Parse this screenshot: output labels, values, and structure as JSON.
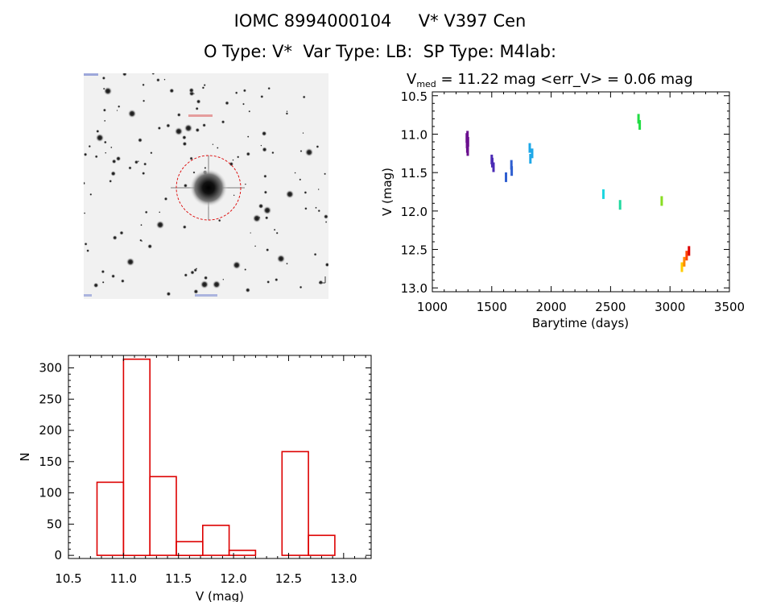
{
  "header": {
    "line1": "IOMC 8994000104     V* V397 Cen",
    "line2": "O Type: V*  Var Type: LB:  SP Type: M4lab:"
  },
  "stats": {
    "v_symbol": "V",
    "v_subscript": "med",
    "text": " = 11.22 mag <err_V> = 0.06 mag"
  },
  "colors": {
    "histogram_stroke": "#dd0000",
    "aperture_circle": "#dd0000"
  },
  "chart_data": [
    {
      "type": "scatter",
      "xlabel": "Barytime (days)",
      "ylabel": "V (mag)",
      "xlim": [
        1000,
        3500
      ],
      "ylim": [
        13.05,
        10.45
      ],
      "y_inverted": true,
      "xticks": [
        "1000",
        "1500",
        "2000",
        "2500",
        "3000",
        "3500"
      ],
      "yticks": [
        "10.5",
        "11.0",
        "11.5",
        "12.0",
        "12.5",
        "13.0"
      ],
      "color_scale": "time (rainbow, purple to red)",
      "points": [
        {
          "x": 1290,
          "y": 11.05,
          "color": "#6a0f8e"
        },
        {
          "x": 1292,
          "y": 11.12,
          "color": "#6a0f8e"
        },
        {
          "x": 1294,
          "y": 11.18,
          "color": "#6a0f8e"
        },
        {
          "x": 1296,
          "y": 11.02,
          "color": "#6a0f8e"
        },
        {
          "x": 1298,
          "y": 11.22,
          "color": "#6a0f8e"
        },
        {
          "x": 1300,
          "y": 11.1,
          "color": "#6a0f8e"
        },
        {
          "x": 1500,
          "y": 11.33,
          "color": "#4b2bb5"
        },
        {
          "x": 1505,
          "y": 11.37,
          "color": "#4b2bb5"
        },
        {
          "x": 1515,
          "y": 11.43,
          "color": "#4b2bb5"
        },
        {
          "x": 1620,
          "y": 11.56,
          "color": "#2f5fd0"
        },
        {
          "x": 1665,
          "y": 11.4,
          "color": "#2f5fd0"
        },
        {
          "x": 1668,
          "y": 11.48,
          "color": "#2f5fd0"
        },
        {
          "x": 1820,
          "y": 11.18,
          "color": "#1ea8e8"
        },
        {
          "x": 1825,
          "y": 11.32,
          "color": "#1ea8e8"
        },
        {
          "x": 1840,
          "y": 11.25,
          "color": "#1ea8e8"
        },
        {
          "x": 2440,
          "y": 11.78,
          "color": "#1ed6e0"
        },
        {
          "x": 2580,
          "y": 11.92,
          "color": "#22d9a0"
        },
        {
          "x": 2735,
          "y": 10.8,
          "color": "#22dd44"
        },
        {
          "x": 2745,
          "y": 10.88,
          "color": "#22dd44"
        },
        {
          "x": 2930,
          "y": 11.87,
          "color": "#88dd22"
        },
        {
          "x": 3100,
          "y": 12.73,
          "color": "#ffcc00"
        },
        {
          "x": 3120,
          "y": 12.66,
          "color": "#ff8800"
        },
        {
          "x": 3140,
          "y": 12.58,
          "color": "#ff4400"
        },
        {
          "x": 3160,
          "y": 12.52,
          "color": "#dd0000"
        }
      ]
    },
    {
      "type": "bar",
      "xlabel": "V (mag)",
      "ylabel": "N",
      "xlim": [
        10.5,
        13.25
      ],
      "ylim": [
        -5,
        320
      ],
      "xticks": [
        "10.5",
        "11.0",
        "11.5",
        "12.0",
        "12.5",
        "13.0"
      ],
      "yticks": [
        "0",
        "50",
        "100",
        "150",
        "200",
        "250",
        "300"
      ],
      "bins": [
        {
          "x0": 10.76,
          "x1": 11.0,
          "value": 117
        },
        {
          "x0": 11.0,
          "x1": 11.24,
          "value": 314
        },
        {
          "x0": 11.24,
          "x1": 11.48,
          "value": 126
        },
        {
          "x0": 11.48,
          "x1": 11.72,
          "value": 22
        },
        {
          "x0": 11.72,
          "x1": 11.96,
          "value": 48
        },
        {
          "x0": 11.96,
          "x1": 12.2,
          "value": 8
        },
        {
          "x0": 12.2,
          "x1": 12.44,
          "value": 0
        },
        {
          "x0": 12.44,
          "x1": 12.68,
          "value": 166
        },
        {
          "x0": 12.68,
          "x1": 12.92,
          "value": 32
        }
      ]
    }
  ]
}
